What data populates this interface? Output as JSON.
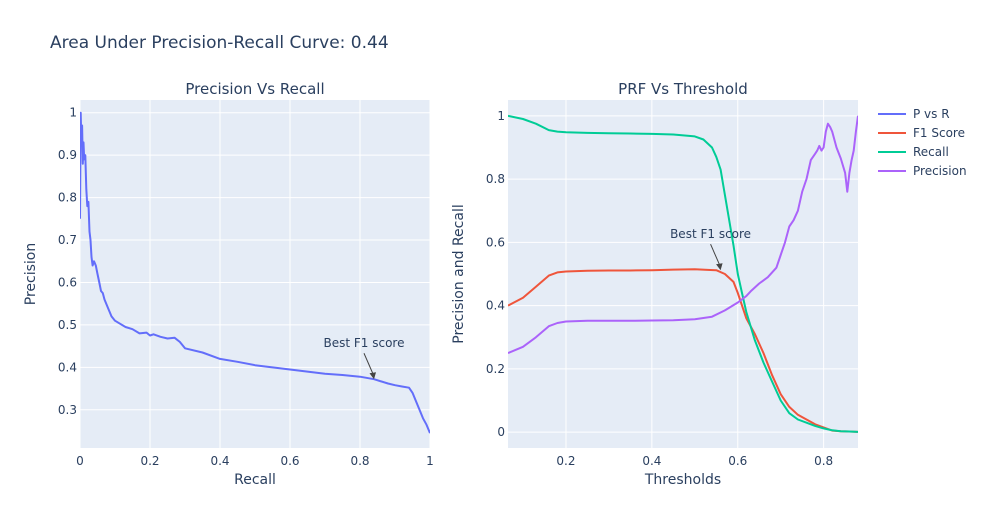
{
  "title": "Area Under Precision-Recall Curve: 0.44",
  "colors": {
    "p_vs_r": "#636efa",
    "f1": "#EF553B",
    "recall": "#00cc96",
    "precision": "#ab63fa",
    "plot_bg": "#e5ecf6",
    "grid": "#ffffff",
    "text": "#2a3f5f"
  },
  "chart_data": [
    {
      "type": "line",
      "title": "Precision Vs Recall",
      "xlabel": "Recall",
      "ylabel": "Precision",
      "xlim": [
        0,
        1
      ],
      "ylim": [
        0.21,
        1.03
      ],
      "xticks": [
        0,
        0.2,
        0.4,
        0.6,
        0.8,
        1
      ],
      "xtick_labels": [
        "0",
        "0.2",
        "0.4",
        "0.6",
        "0.8",
        "1"
      ],
      "yticks": [
        0.3,
        0.4,
        0.5,
        0.6,
        0.7,
        0.8,
        0.9,
        1
      ],
      "ytick_labels": [
        "0.3",
        "0.4",
        "0.5",
        "0.6",
        "0.7",
        "0.8",
        "0.9",
        "1"
      ],
      "grid": true,
      "series": [
        {
          "name": "P vs R",
          "color": "#636efa",
          "x": [
            0,
            0.002,
            0.004,
            0.006,
            0.008,
            0.01,
            0.012,
            0.015,
            0.018,
            0.021,
            0.024,
            0.027,
            0.03,
            0.033,
            0.036,
            0.04,
            0.045,
            0.05,
            0.055,
            0.06,
            0.065,
            0.07,
            0.08,
            0.09,
            0.1,
            0.11,
            0.13,
            0.15,
            0.17,
            0.19,
            0.2,
            0.21,
            0.23,
            0.25,
            0.27,
            0.285,
            0.3,
            0.35,
            0.4,
            0.45,
            0.5,
            0.55,
            0.6,
            0.65,
            0.7,
            0.75,
            0.8,
            0.84,
            0.88,
            0.9,
            0.92,
            0.94,
            0.95,
            0.96,
            0.97,
            0.98,
            0.99,
            1.0
          ],
          "y": [
            0.75,
            1.0,
            0.93,
            0.97,
            0.88,
            0.93,
            0.89,
            0.9,
            0.82,
            0.78,
            0.79,
            0.72,
            0.7,
            0.66,
            0.64,
            0.65,
            0.64,
            0.62,
            0.6,
            0.58,
            0.575,
            0.56,
            0.54,
            0.52,
            0.51,
            0.505,
            0.495,
            0.49,
            0.48,
            0.482,
            0.475,
            0.478,
            0.472,
            0.468,
            0.47,
            0.46,
            0.445,
            0.435,
            0.42,
            0.413,
            0.405,
            0.4,
            0.395,
            0.39,
            0.385,
            0.382,
            0.378,
            0.372,
            0.362,
            0.358,
            0.355,
            0.352,
            0.34,
            0.32,
            0.3,
            0.28,
            0.265,
            0.245
          ]
        }
      ],
      "annotation": {
        "text": "Best F1 score",
        "x": 0.84,
        "y": 0.372
      }
    },
    {
      "type": "line",
      "title": "PRF Vs Threshold",
      "xlabel": "Thresholds",
      "ylabel": "Precision and Recall",
      "xlim": [
        0.065,
        0.88
      ],
      "ylim": [
        -0.05,
        1.05
      ],
      "xticks": [
        0.2,
        0.4,
        0.6,
        0.8
      ],
      "xtick_labels": [
        "0.2",
        "0.4",
        "0.6",
        "0.8"
      ],
      "yticks": [
        0,
        0.2,
        0.4,
        0.6,
        0.8,
        1
      ],
      "ytick_labels": [
        "0",
        "0.2",
        "0.4",
        "0.6",
        "0.8",
        "1"
      ],
      "grid": true,
      "series": [
        {
          "name": "F1 Score",
          "color": "#EF553B",
          "x": [
            0.065,
            0.1,
            0.13,
            0.16,
            0.18,
            0.2,
            0.25,
            0.3,
            0.35,
            0.4,
            0.45,
            0.5,
            0.53,
            0.55,
            0.57,
            0.59,
            0.6,
            0.62,
            0.64,
            0.66,
            0.68,
            0.7,
            0.72,
            0.74,
            0.76,
            0.78,
            0.8,
            0.82,
            0.84,
            0.86,
            0.88
          ],
          "y": [
            0.4,
            0.425,
            0.46,
            0.495,
            0.505,
            0.508,
            0.51,
            0.511,
            0.511,
            0.512,
            0.514,
            0.515,
            0.513,
            0.512,
            0.5,
            0.475,
            0.44,
            0.36,
            0.31,
            0.25,
            0.18,
            0.12,
            0.08,
            0.055,
            0.04,
            0.025,
            0.015,
            0.005,
            0.003,
            0.002,
            0.001
          ]
        },
        {
          "name": "Recall",
          "color": "#00cc96",
          "x": [
            0.065,
            0.1,
            0.13,
            0.16,
            0.18,
            0.2,
            0.25,
            0.3,
            0.35,
            0.4,
            0.45,
            0.5,
            0.52,
            0.54,
            0.55,
            0.56,
            0.57,
            0.58,
            0.59,
            0.6,
            0.61,
            0.62,
            0.64,
            0.66,
            0.68,
            0.7,
            0.72,
            0.74,
            0.76,
            0.78,
            0.8,
            0.82,
            0.84,
            0.86,
            0.88
          ],
          "y": [
            1.0,
            0.99,
            0.975,
            0.955,
            0.95,
            0.948,
            0.946,
            0.945,
            0.944,
            0.943,
            0.941,
            0.935,
            0.925,
            0.9,
            0.87,
            0.83,
            0.75,
            0.67,
            0.59,
            0.5,
            0.44,
            0.38,
            0.29,
            0.22,
            0.16,
            0.1,
            0.06,
            0.04,
            0.03,
            0.02,
            0.012,
            0.006,
            0.003,
            0.002,
            0.001
          ]
        },
        {
          "name": "Precision",
          "color": "#ab63fa",
          "x": [
            0.065,
            0.1,
            0.13,
            0.16,
            0.18,
            0.2,
            0.25,
            0.3,
            0.35,
            0.4,
            0.45,
            0.5,
            0.54,
            0.57,
            0.6,
            0.62,
            0.63,
            0.65,
            0.67,
            0.69,
            0.7,
            0.71,
            0.72,
            0.73,
            0.74,
            0.75,
            0.76,
            0.77,
            0.78,
            0.785,
            0.79,
            0.795,
            0.8,
            0.805,
            0.81,
            0.815,
            0.82,
            0.83,
            0.84,
            0.85,
            0.855,
            0.86,
            0.865,
            0.87,
            0.875,
            0.88
          ],
          "y": [
            0.25,
            0.27,
            0.3,
            0.335,
            0.345,
            0.35,
            0.352,
            0.352,
            0.352,
            0.353,
            0.354,
            0.357,
            0.365,
            0.385,
            0.41,
            0.43,
            0.445,
            0.47,
            0.49,
            0.52,
            0.56,
            0.6,
            0.65,
            0.67,
            0.7,
            0.76,
            0.8,
            0.86,
            0.88,
            0.89,
            0.905,
            0.89,
            0.9,
            0.95,
            0.975,
            0.965,
            0.95,
            0.9,
            0.865,
            0.82,
            0.76,
            0.82,
            0.86,
            0.89,
            0.95,
            1.0
          ]
        }
      ],
      "annotation": {
        "text": "Best F1 score",
        "x": 0.56,
        "y": 0.512
      }
    }
  ],
  "legend": {
    "placement": "top-right",
    "items": [
      {
        "label": "P vs R",
        "color": "#636efa"
      },
      {
        "label": "F1 Score",
        "color": "#EF553B"
      },
      {
        "label": "Recall",
        "color": "#00cc96"
      },
      {
        "label": "Precision",
        "color": "#ab63fa"
      }
    ]
  }
}
